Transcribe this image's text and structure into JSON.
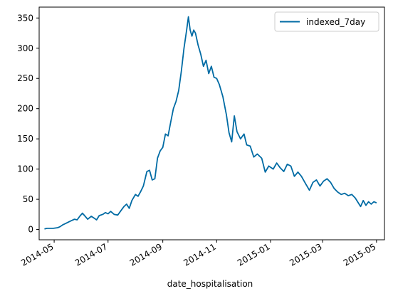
{
  "chart_data": {
    "type": "line",
    "xlabel": "date_hospitalisation",
    "ylabel": "",
    "xlim": [
      "2014-04-14",
      "2015-05-10"
    ],
    "ylim": [
      -17,
      368
    ],
    "xticks": [
      {
        "date": "2014-05-01",
        "label": "2014-05"
      },
      {
        "date": "2014-07-01",
        "label": "2014-07"
      },
      {
        "date": "2014-09-01",
        "label": "2014-09"
      },
      {
        "date": "2014-11-01",
        "label": "2014-11"
      },
      {
        "date": "2015-01-01",
        "label": "2015-01"
      },
      {
        "date": "2015-03-01",
        "label": "2015-03"
      },
      {
        "date": "2015-05-01",
        "label": "2015-05"
      }
    ],
    "yticks": [
      0,
      50,
      100,
      150,
      200,
      250,
      300,
      350
    ],
    "grid": false,
    "legend_position": "top-right",
    "series": [
      {
        "name": "indexed_7day",
        "color": "#006ba4",
        "points": [
          [
            "2014-04-20",
            1
          ],
          [
            "2014-04-23",
            2
          ],
          [
            "2014-04-26",
            2
          ],
          [
            "2014-04-30",
            2
          ],
          [
            "2014-05-05",
            3
          ],
          [
            "2014-05-08",
            5
          ],
          [
            "2014-05-11",
            8
          ],
          [
            "2014-05-14",
            10
          ],
          [
            "2014-05-18",
            13
          ],
          [
            "2014-05-21",
            15
          ],
          [
            "2014-05-24",
            17
          ],
          [
            "2014-05-27",
            16
          ],
          [
            "2014-05-30",
            22
          ],
          [
            "2014-06-02",
            27
          ],
          [
            "2014-06-05",
            22
          ],
          [
            "2014-06-08",
            17
          ],
          [
            "2014-06-12",
            22
          ],
          [
            "2014-06-15",
            19
          ],
          [
            "2014-06-18",
            16
          ],
          [
            "2014-06-21",
            23
          ],
          [
            "2014-06-25",
            25
          ],
          [
            "2014-06-28",
            28
          ],
          [
            "2014-07-01",
            26
          ],
          [
            "2014-07-04",
            30
          ],
          [
            "2014-07-08",
            25
          ],
          [
            "2014-07-12",
            24
          ],
          [
            "2014-07-15",
            30
          ],
          [
            "2014-07-19",
            38
          ],
          [
            "2014-07-22",
            42
          ],
          [
            "2014-07-25",
            35
          ],
          [
            "2014-07-28",
            48
          ],
          [
            "2014-08-01",
            58
          ],
          [
            "2014-08-04",
            55
          ],
          [
            "2014-08-07",
            63
          ],
          [
            "2014-08-10",
            72
          ],
          [
            "2014-08-14",
            96
          ],
          [
            "2014-08-17",
            98
          ],
          [
            "2014-08-20",
            82
          ],
          [
            "2014-08-23",
            84
          ],
          [
            "2014-08-26",
            118
          ],
          [
            "2014-08-29",
            130
          ],
          [
            "2014-09-01",
            136
          ],
          [
            "2014-09-04",
            158
          ],
          [
            "2014-09-07",
            155
          ],
          [
            "2014-09-10",
            178
          ],
          [
            "2014-09-13",
            200
          ],
          [
            "2014-09-16",
            212
          ],
          [
            "2014-09-19",
            230
          ],
          [
            "2014-09-22",
            262
          ],
          [
            "2014-09-25",
            300
          ],
          [
            "2014-09-28",
            330
          ],
          [
            "2014-09-30",
            352
          ],
          [
            "2014-10-02",
            330
          ],
          [
            "2014-10-04",
            320
          ],
          [
            "2014-10-06",
            330
          ],
          [
            "2014-10-08",
            325
          ],
          [
            "2014-10-11",
            305
          ],
          [
            "2014-10-14",
            290
          ],
          [
            "2014-10-17",
            270
          ],
          [
            "2014-10-20",
            280
          ],
          [
            "2014-10-23",
            258
          ],
          [
            "2014-10-26",
            270
          ],
          [
            "2014-10-29",
            252
          ],
          [
            "2014-11-01",
            250
          ],
          [
            "2014-11-04",
            240
          ],
          [
            "2014-11-08",
            220
          ],
          [
            "2014-11-12",
            190
          ],
          [
            "2014-11-15",
            160
          ],
          [
            "2014-11-18",
            145
          ],
          [
            "2014-11-21",
            188
          ],
          [
            "2014-11-24",
            162
          ],
          [
            "2014-11-28",
            150
          ],
          [
            "2014-12-02",
            158
          ],
          [
            "2014-12-05",
            140
          ],
          [
            "2014-12-09",
            138
          ],
          [
            "2014-12-13",
            120
          ],
          [
            "2014-12-17",
            125
          ],
          [
            "2014-12-22",
            118
          ],
          [
            "2014-12-26",
            95
          ],
          [
            "2014-12-30",
            105
          ],
          [
            "2015-01-04",
            100
          ],
          [
            "2015-01-08",
            110
          ],
          [
            "2015-01-12",
            102
          ],
          [
            "2015-01-16",
            96
          ],
          [
            "2015-01-20",
            108
          ],
          [
            "2015-01-24",
            105
          ],
          [
            "2015-01-28",
            88
          ],
          [
            "2015-02-01",
            95
          ],
          [
            "2015-02-05",
            88
          ],
          [
            "2015-02-10",
            75
          ],
          [
            "2015-02-14",
            65
          ],
          [
            "2015-02-18",
            78
          ],
          [
            "2015-02-22",
            82
          ],
          [
            "2015-02-26",
            72
          ],
          [
            "2015-03-02",
            80
          ],
          [
            "2015-03-06",
            84
          ],
          [
            "2015-03-10",
            78
          ],
          [
            "2015-03-14",
            68
          ],
          [
            "2015-03-18",
            62
          ],
          [
            "2015-03-22",
            58
          ],
          [
            "2015-03-26",
            60
          ],
          [
            "2015-03-30",
            56
          ],
          [
            "2015-04-03",
            58
          ],
          [
            "2015-04-07",
            52
          ],
          [
            "2015-04-10",
            45
          ],
          [
            "2015-04-13",
            38
          ],
          [
            "2015-04-16",
            48
          ],
          [
            "2015-04-19",
            40
          ],
          [
            "2015-04-22",
            46
          ],
          [
            "2015-04-25",
            42
          ],
          [
            "2015-04-28",
            46
          ],
          [
            "2015-05-01",
            44
          ]
        ]
      }
    ]
  }
}
